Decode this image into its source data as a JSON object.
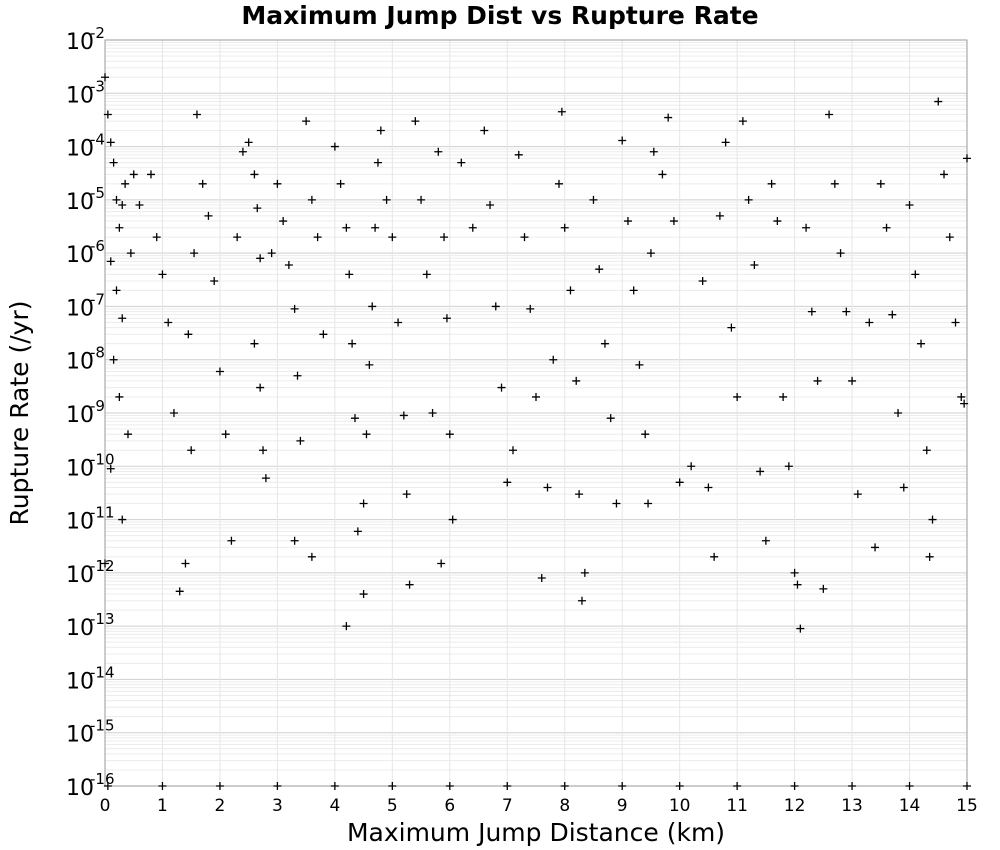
{
  "chart_data": {
    "type": "scatter",
    "title": "Maximum Jump Dist vs Rupture Rate",
    "xlabel": "Maximum Jump Distance (km)",
    "ylabel": "Rupture Rate (/yr)",
    "xlim": [
      0,
      15
    ],
    "ylim": [
      1e-16,
      0.01
    ],
    "yscale": "log",
    "grid": true,
    "marker": "+",
    "marker_color": "#000000",
    "xticks": [
      "0",
      "1",
      "2",
      "3",
      "4",
      "5",
      "6",
      "7",
      "8",
      "9",
      "10",
      "11",
      "12",
      "13",
      "14",
      "15"
    ],
    "yticks": [
      {
        "base": "10",
        "exp": "-2"
      },
      {
        "base": "10",
        "exp": "-3"
      },
      {
        "base": "10",
        "exp": "-4"
      },
      {
        "base": "10",
        "exp": "-5"
      },
      {
        "base": "10",
        "exp": "-6"
      },
      {
        "base": "10",
        "exp": "-7"
      },
      {
        "base": "10",
        "exp": "-8"
      },
      {
        "base": "10",
        "exp": "-9"
      },
      {
        "base": "10",
        "exp": "-10"
      },
      {
        "base": "10",
        "exp": "-11"
      },
      {
        "base": "10",
        "exp": "-12"
      },
      {
        "base": "10",
        "exp": "-13"
      },
      {
        "base": "10",
        "exp": "-14"
      },
      {
        "base": "10",
        "exp": "-15"
      },
      {
        "base": "10",
        "exp": "-16"
      }
    ],
    "points": [
      [
        0.0,
        0.002
      ],
      [
        0.05,
        0.0004
      ],
      [
        0.1,
        0.00012
      ],
      [
        0.15,
        5e-05
      ],
      [
        0.2,
        1e-05
      ],
      [
        0.25,
        3e-06
      ],
      [
        0.3,
        8e-06
      ],
      [
        0.35,
        2e-05
      ],
      [
        0.1,
        7e-07
      ],
      [
        0.2,
        2e-07
      ],
      [
        0.3,
        6e-08
      ],
      [
        0.15,
        1e-08
      ],
      [
        0.25,
        2e-09
      ],
      [
        0.4,
        4e-10
      ],
      [
        0.1,
        9e-11
      ],
      [
        0.3,
        1e-11
      ],
      [
        0.0,
        1.5e-12
      ],
      [
        0.5,
        3e-05
      ],
      [
        0.6,
        8e-06
      ],
      [
        0.45,
        1e-06
      ],
      [
        0.8,
        3e-05
      ],
      [
        0.9,
        2e-06
      ],
      [
        1.0,
        4e-07
      ],
      [
        1.1,
        5e-08
      ],
      [
        1.2,
        1e-09
      ],
      [
        1.3,
        4.5e-13
      ],
      [
        1.4,
        1.5e-12
      ],
      [
        1.5,
        2e-10
      ],
      [
        1.45,
        3e-08
      ],
      [
        1.55,
        1e-06
      ],
      [
        1.6,
        0.0004
      ],
      [
        1.7,
        2e-05
      ],
      [
        1.8,
        5e-06
      ],
      [
        1.9,
        3e-07
      ],
      [
        2.0,
        6e-09
      ],
      [
        2.1,
        4e-10
      ],
      [
        2.2,
        4e-12
      ],
      [
        2.3,
        2e-06
      ],
      [
        2.4,
        8e-05
      ],
      [
        2.5,
        0.00012
      ],
      [
        2.6,
        3e-05
      ],
      [
        2.65,
        7e-06
      ],
      [
        2.7,
        8e-07
      ],
      [
        2.6,
        2e-08
      ],
      [
        2.7,
        3e-09
      ],
      [
        2.75,
        2e-10
      ],
      [
        2.8,
        6e-11
      ],
      [
        2.9,
        1e-06
      ],
      [
        3.0,
        2e-05
      ],
      [
        3.1,
        4e-06
      ],
      [
        3.2,
        6e-07
      ],
      [
        3.3,
        9e-08
      ],
      [
        3.35,
        5e-09
      ],
      [
        3.4,
        3e-10
      ],
      [
        3.3,
        4e-12
      ],
      [
        3.5,
        0.0003
      ],
      [
        3.6,
        1e-05
      ],
      [
        3.7,
        2e-06
      ],
      [
        3.8,
        3e-08
      ],
      [
        3.6,
        2e-12
      ],
      [
        4.0,
        0.0001
      ],
      [
        4.1,
        2e-05
      ],
      [
        4.2,
        3e-06
      ],
      [
        4.25,
        4e-07
      ],
      [
        4.3,
        2e-08
      ],
      [
        4.35,
        8e-10
      ],
      [
        4.2,
        1e-13
      ],
      [
        4.4,
        6e-12
      ],
      [
        4.5,
        2e-11
      ],
      [
        4.55,
        4e-10
      ],
      [
        4.6,
        8e-09
      ],
      [
        4.65,
        1e-07
      ],
      [
        4.7,
        3e-06
      ],
      [
        4.75,
        5e-05
      ],
      [
        4.5,
        4e-13
      ],
      [
        4.8,
        0.0002
      ],
      [
        4.9,
        1e-05
      ],
      [
        5.0,
        2e-06
      ],
      [
        5.1,
        5e-08
      ],
      [
        5.2,
        9e-10
      ],
      [
        5.25,
        3e-11
      ],
      [
        5.3,
        6e-13
      ],
      [
        5.4,
        0.0003
      ],
      [
        5.5,
        1e-05
      ],
      [
        5.6,
        4e-07
      ],
      [
        5.7,
        1e-09
      ],
      [
        5.8,
        8e-05
      ],
      [
        5.9,
        2e-06
      ],
      [
        5.95,
        6e-08
      ],
      [
        6.0,
        4e-10
      ],
      [
        6.05,
        1e-11
      ],
      [
        5.85,
        1.5e-12
      ],
      [
        6.2,
        5e-05
      ],
      [
        6.4,
        3e-06
      ],
      [
        6.6,
        0.0002
      ],
      [
        6.7,
        8e-06
      ],
      [
        6.8,
        1e-07
      ],
      [
        6.9,
        3e-09
      ],
      [
        7.0,
        5e-11
      ],
      [
        7.1,
        2e-10
      ],
      [
        7.2,
        7e-05
      ],
      [
        7.3,
        2e-06
      ],
      [
        7.4,
        9e-08
      ],
      [
        7.5,
        2e-09
      ],
      [
        7.6,
        8e-13
      ],
      [
        7.7,
        4e-11
      ],
      [
        7.8,
        1e-08
      ],
      [
        7.9,
        2e-05
      ],
      [
        7.95,
        0.00045
      ],
      [
        8.0,
        3e-06
      ],
      [
        8.1,
        2e-07
      ],
      [
        8.2,
        4e-09
      ],
      [
        8.25,
        3e-11
      ],
      [
        8.3,
        3e-13
      ],
      [
        8.35,
        1e-12
      ],
      [
        8.5,
        1e-05
      ],
      [
        8.6,
        5e-07
      ],
      [
        8.7,
        2e-08
      ],
      [
        8.8,
        8e-10
      ],
      [
        8.9,
        2e-11
      ],
      [
        9.0,
        0.00013
      ],
      [
        9.1,
        4e-06
      ],
      [
        9.2,
        2e-07
      ],
      [
        9.3,
        8e-09
      ],
      [
        9.4,
        4e-10
      ],
      [
        9.45,
        2e-11
      ],
      [
        9.5,
        1e-06
      ],
      [
        9.55,
        8e-05
      ],
      [
        9.7,
        3e-05
      ],
      [
        9.8,
        0.00035
      ],
      [
        9.9,
        4e-06
      ],
      [
        10.0,
        5e-11
      ],
      [
        10.2,
        1e-10
      ],
      [
        10.4,
        3e-07
      ],
      [
        10.5,
        4e-11
      ],
      [
        10.6,
        2e-12
      ],
      [
        10.7,
        5e-06
      ],
      [
        10.8,
        0.00012
      ],
      [
        10.9,
        4e-08
      ],
      [
        11.0,
        2e-09
      ],
      [
        11.1,
        0.0003
      ],
      [
        11.2,
        1e-05
      ],
      [
        11.3,
        6e-07
      ],
      [
        11.4,
        8e-11
      ],
      [
        11.5,
        4e-12
      ],
      [
        11.6,
        2e-05
      ],
      [
        11.7,
        4e-06
      ],
      [
        11.8,
        2e-09
      ],
      [
        11.9,
        1e-10
      ],
      [
        12.0,
        1e-12
      ],
      [
        12.05,
        6e-13
      ],
      [
        12.1,
        9e-14
      ],
      [
        12.2,
        3e-06
      ],
      [
        12.3,
        8e-08
      ],
      [
        12.4,
        4e-09
      ],
      [
        12.5,
        5e-13
      ],
      [
        12.6,
        0.0004
      ],
      [
        12.7,
        2e-05
      ],
      [
        12.8,
        1e-06
      ],
      [
        12.9,
        8e-08
      ],
      [
        13.0,
        4e-09
      ],
      [
        13.1,
        3e-11
      ],
      [
        13.3,
        5e-08
      ],
      [
        13.4,
        3e-12
      ],
      [
        13.5,
        2e-05
      ],
      [
        13.6,
        3e-06
      ],
      [
        13.7,
        7e-08
      ],
      [
        13.8,
        1e-09
      ],
      [
        13.9,
        4e-11
      ],
      [
        14.0,
        8e-06
      ],
      [
        14.1,
        4e-07
      ],
      [
        14.2,
        2e-08
      ],
      [
        14.3,
        2e-10
      ],
      [
        14.35,
        2e-12
      ],
      [
        14.4,
        1e-11
      ],
      [
        14.5,
        0.0007
      ],
      [
        14.6,
        3e-05
      ],
      [
        14.7,
        2e-06
      ],
      [
        14.8,
        5e-08
      ],
      [
        14.9,
        2e-09
      ],
      [
        15.0,
        6e-05
      ],
      [
        14.95,
        1.5e-09
      ],
      [
        0.05,
        1e-16
      ],
      [
        1.0,
        1e-16
      ],
      [
        2.0,
        1e-16
      ],
      [
        3.0,
        1e-16
      ],
      [
        4.0,
        1e-16
      ],
      [
        5.0,
        1e-16
      ],
      [
        6.0,
        1e-16
      ],
      [
        7.0,
        1e-16
      ],
      [
        8.0,
        1e-16
      ],
      [
        9.0,
        1e-16
      ],
      [
        10.0,
        1e-16
      ],
      [
        11.0,
        1e-16
      ],
      [
        12.0,
        1e-16
      ],
      [
        13.0,
        1e-16
      ],
      [
        14.0,
        1e-16
      ],
      [
        15.0,
        1e-16
      ]
    ]
  }
}
